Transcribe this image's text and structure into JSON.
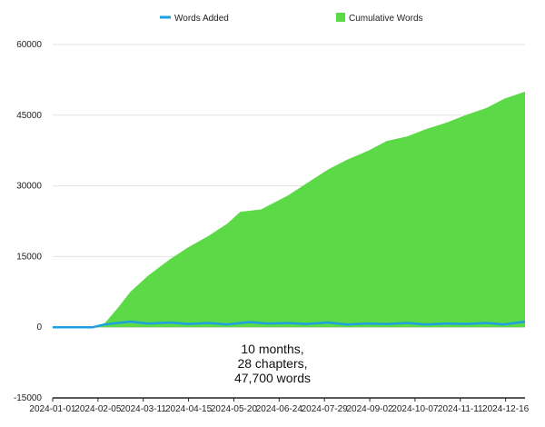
{
  "chart_data": {
    "type": "area",
    "title": "",
    "xlabel": "",
    "ylabel": "",
    "ylim": [
      -15000,
      60000
    ],
    "yticks": [
      60000,
      45000,
      30000,
      15000,
      0,
      -15000
    ],
    "grid": true,
    "legend_position": "top",
    "x_tick_labels": [
      "2024-01-01",
      "2024-02-05",
      "2024-03-11",
      "2024-04-15",
      "2024-05-20",
      "2024-06-24",
      "2024-07-29",
      "2024-09-02",
      "2024-10-07",
      "2024-11-11",
      "2024-12-16"
    ],
    "x_start": "2024-01-01",
    "x_end": "2024-12-31",
    "annotation": [
      "10 months,",
      "28 chapters,",
      "47,700 words"
    ],
    "colors": {
      "words_added": "#1e9fe0",
      "cumulative": "#5cd946"
    },
    "series": [
      {
        "name": "Words Added",
        "type": "line",
        "x": [
          "2024-01-01",
          "2024-02-01",
          "2024-02-10",
          "2024-02-20",
          "2024-03-01",
          "2024-03-15",
          "2024-04-01",
          "2024-04-15",
          "2024-05-01",
          "2024-05-15",
          "2024-06-01",
          "2024-06-15",
          "2024-07-01",
          "2024-07-15",
          "2024-08-01",
          "2024-08-15",
          "2024-09-01",
          "2024-09-15",
          "2024-10-01",
          "2024-10-15",
          "2024-11-01",
          "2024-11-15",
          "2024-12-01",
          "2024-12-15",
          "2024-12-31"
        ],
        "values": [
          0,
          0,
          600,
          900,
          1200,
          800,
          1000,
          700,
          900,
          600,
          1100,
          800,
          900,
          700,
          1000,
          600,
          800,
          700,
          900,
          600,
          800,
          700,
          900,
          600,
          1200
        ]
      },
      {
        "name": "Cumulative Words",
        "type": "area",
        "x": [
          "2024-01-01",
          "2024-02-01",
          "2024-02-10",
          "2024-02-20",
          "2024-03-01",
          "2024-03-15",
          "2024-04-01",
          "2024-04-15",
          "2024-05-01",
          "2024-05-15",
          "2024-05-25",
          "2024-06-10",
          "2024-07-01",
          "2024-07-15",
          "2024-08-01",
          "2024-08-15",
          "2024-09-01",
          "2024-09-15",
          "2024-10-01",
          "2024-10-15",
          "2024-11-01",
          "2024-11-15",
          "2024-12-01",
          "2024-12-15",
          "2024-12-31"
        ],
        "values": [
          0,
          0,
          800,
          4000,
          7500,
          11000,
          14500,
          17000,
          19500,
          22000,
          24500,
          25000,
          28000,
          30500,
          33500,
          35500,
          37500,
          39500,
          40500,
          42000,
          43500,
          45000,
          46500,
          48500,
          50000
        ]
      }
    ]
  }
}
